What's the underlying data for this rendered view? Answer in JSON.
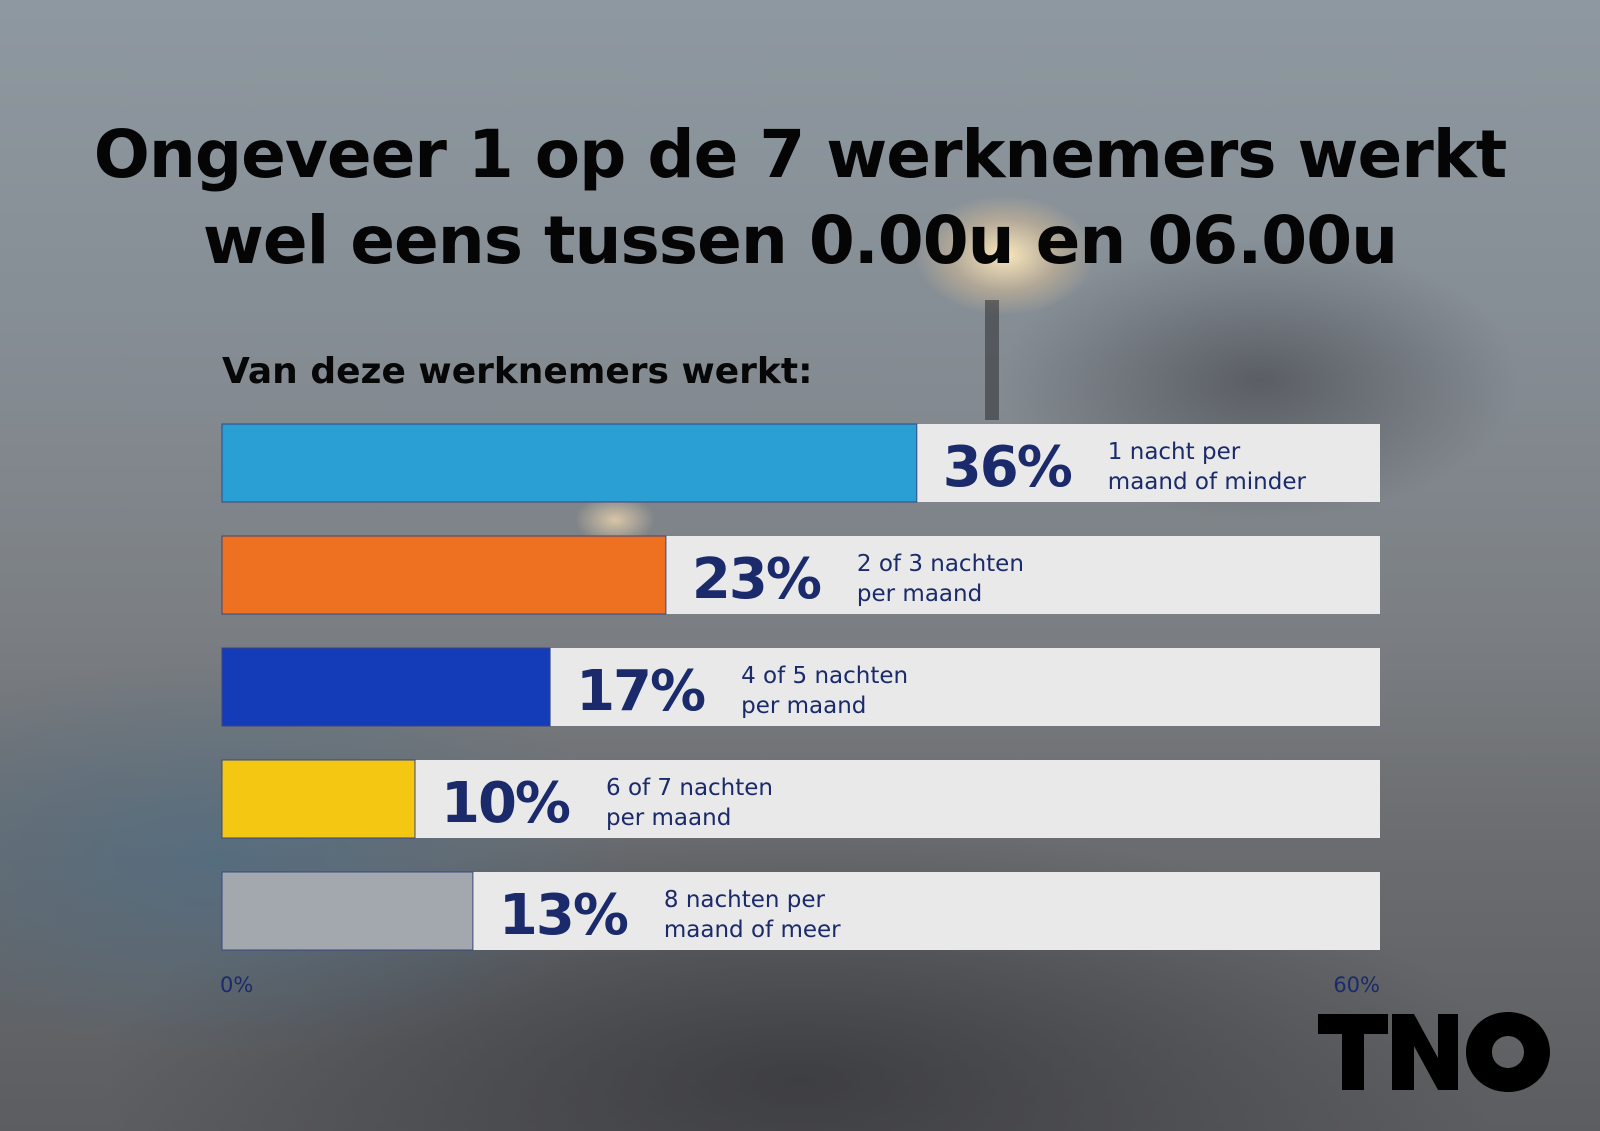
{
  "title_line1": "Ongeveer 1 op de 7 werknemers werkt",
  "title_line2": "wel eens tussen 0.00u en 06.00u",
  "subtitle": "Van deze werknemers werkt:",
  "logo_text": "TNO",
  "chart_data": {
    "type": "bar",
    "orientation": "horizontal",
    "xlim": [
      0,
      60
    ],
    "xtick_labels": [
      "0%",
      "60%"
    ],
    "categories": [
      [
        "1 nacht per",
        "maand of minder"
      ],
      [
        "2 of 3 nachten",
        "per maand"
      ],
      [
        "4 of 5 nachten",
        "per maand"
      ],
      [
        "6 of 7 nachten",
        "per maand"
      ],
      [
        "8 nachten per",
        "maand of meer"
      ]
    ],
    "values": [
      36,
      23,
      17,
      10,
      13
    ],
    "value_labels": [
      "36%",
      "23%",
      "17%",
      "10%",
      "13%"
    ],
    "colors": [
      "#2a9fd3",
      "#ee7122",
      "#143bb8",
      "#f3c712",
      "#a2a8ae"
    ],
    "track_color": "#e8e9e8",
    "label_color": "#1b2a6b"
  }
}
